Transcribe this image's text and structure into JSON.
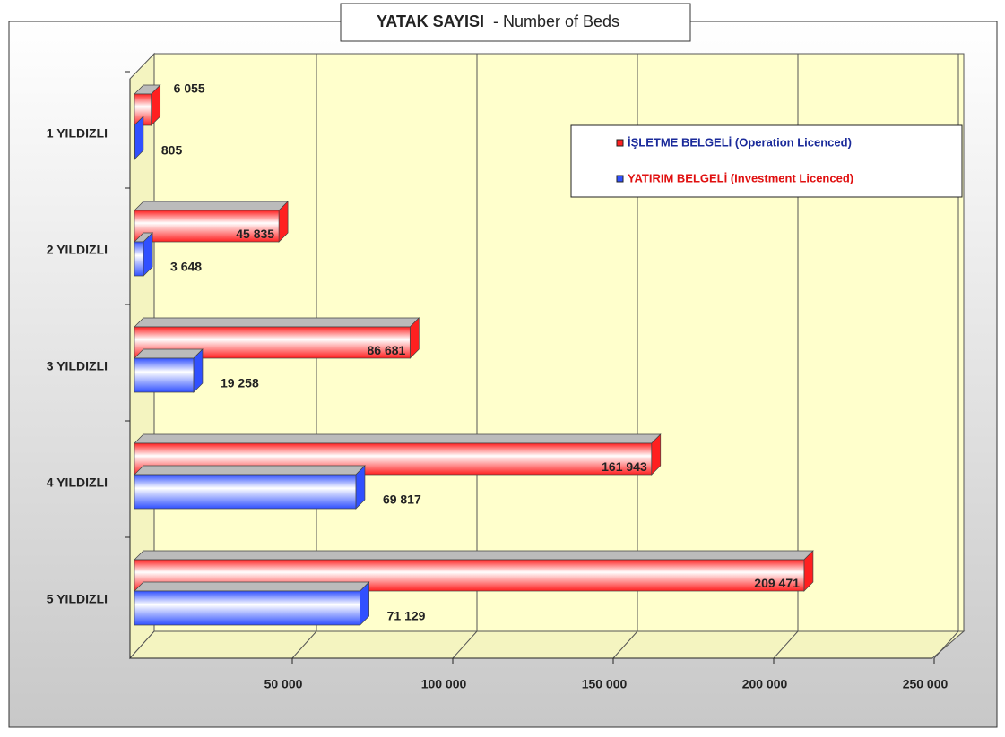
{
  "chart_data": {
    "type": "bar3d_horizontal",
    "title": "YATAK SAYISI",
    "subtitle": "- Number of Beds",
    "categories": [
      "1 YILDIZLI",
      "2 YILDIZLI",
      "3 YILDIZLI",
      "4 YILDIZLI",
      "5 YILDIZLI"
    ],
    "series": [
      {
        "name": "İŞLETME BELGELİ (Operation Licenced)",
        "color": "#ff2020",
        "values": [
          6055,
          45835,
          86681,
          161943,
          209471
        ],
        "value_labels": [
          "6 055",
          "45 835",
          "86 681",
          "161 943",
          "209 471"
        ]
      },
      {
        "name": "YATIRIM BELGELİ (Investment Licenced)",
        "color": "#3050ff",
        "values": [
          805,
          3648,
          19258,
          69817,
          71129
        ],
        "value_labels": [
          "805",
          "3 648",
          "19 258",
          "69 817",
          "71 129"
        ]
      }
    ],
    "xlim": [
      0,
      250000
    ],
    "xticks": [
      {
        "value": 50000,
        "label": "50 000"
      },
      {
        "value": 100000,
        "label": "100 000"
      },
      {
        "value": 150000,
        "label": "150 000"
      },
      {
        "value": 200000,
        "label": "200 000"
      },
      {
        "value": 250000,
        "label": "250 000"
      }
    ],
    "grid": true,
    "legend": "upper right"
  }
}
